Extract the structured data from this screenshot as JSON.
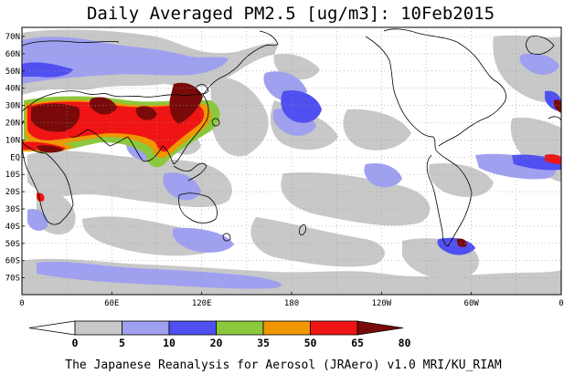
{
  "title": "Daily Averaged PM2.5 [ug/m3]: 10Feb2015",
  "credit": "The Japanese Reanalysis for Aerosol (JRAero) v1.0 MRI/KU_RIAM",
  "lat_labels": [
    "70N",
    "60N",
    "50N",
    "40N",
    "30N",
    "20N",
    "10N",
    "EQ",
    "10S",
    "20S",
    "30S",
    "40S",
    "50S",
    "60S",
    "70S"
  ],
  "lon_labels": [
    "0",
    "60E",
    "120E",
    "180",
    "120W",
    "60W",
    "0"
  ],
  "colorbar": {
    "levels": [
      "0",
      "5",
      "10",
      "20",
      "35",
      "50",
      "65",
      "80"
    ],
    "colors": [
      "#ffffff",
      "#c8c8c8",
      "#a0a0f0",
      "#5050f0",
      "#8cc83c",
      "#f09600",
      "#f01414",
      "#7a0a0a"
    ]
  },
  "colors": {
    "land_outline": "#000000",
    "grid": "#9a9a9a",
    "background": "#ffffff"
  }
}
